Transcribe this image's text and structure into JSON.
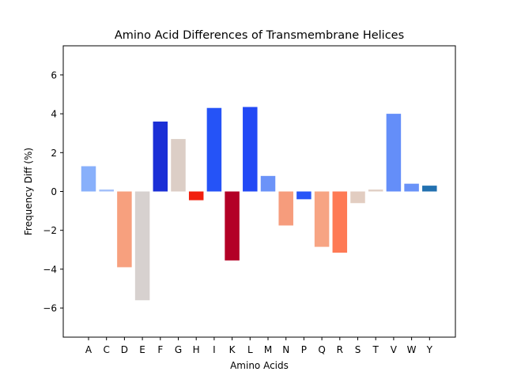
{
  "chart_data": {
    "type": "bar",
    "title": "Amino Acid Differences of Transmembrane Helices",
    "xlabel": "Amino Acids",
    "ylabel": "Frequency Diff (%)",
    "ylim": [
      -7.5,
      7.5
    ],
    "yticks": [
      -6,
      -4,
      -2,
      0,
      2,
      4,
      6
    ],
    "ytick_labels": [
      "−6",
      "−4",
      "−2",
      "0",
      "2",
      "4",
      "6"
    ],
    "grid": false,
    "categories": [
      "A",
      "C",
      "D",
      "E",
      "F",
      "G",
      "H",
      "I",
      "K",
      "L",
      "M",
      "N",
      "P",
      "Q",
      "R",
      "S",
      "T",
      "V",
      "W",
      "Y"
    ],
    "values": [
      1.3,
      0.1,
      -3.9,
      -5.6,
      3.6,
      2.7,
      -0.45,
      4.3,
      -3.55,
      4.35,
      0.8,
      -1.75,
      -0.4,
      -2.85,
      -3.15,
      -0.6,
      0.1,
      4.0,
      0.4,
      0.3
    ],
    "colors": [
      "#88b0fb",
      "#a3c0f9",
      "#f7a07e",
      "#d7d1cf",
      "#1b2fd6",
      "#dccec6",
      "#f1200f",
      "#2553f7",
      "#b30026",
      "#2249f5",
      "#6b93f8",
      "#f69c7c",
      "#2855f7",
      "#f7a483",
      "#fe7a55",
      "#e2cdc1",
      "#e1d0c6",
      "#648ef9",
      "#6992f8",
      "#2271b0"
    ]
  }
}
